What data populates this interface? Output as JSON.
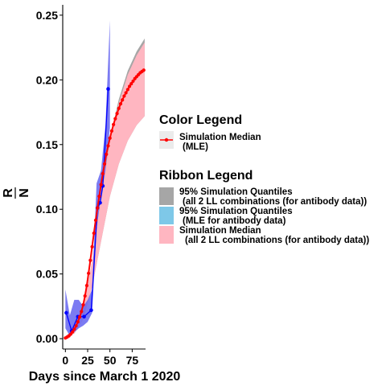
{
  "chart_data": {
    "type": "line",
    "xlabel": "Days since March 1 2020",
    "ylabel_numerator": "R",
    "ylabel_denominator": "N",
    "xlim": [
      -3,
      90
    ],
    "ylim": [
      -0.008,
      0.258
    ],
    "x_ticks": [
      0,
      25,
      50,
      75
    ],
    "y_ticks": [
      0.0,
      0.05,
      0.1,
      0.15,
      0.2,
      0.25
    ],
    "y_tick_labels": [
      "0.00",
      "0.05",
      "0.10",
      "0.15",
      "0.20",
      "0.25"
    ],
    "grid": false,
    "color_legend": {
      "title": "Color  Legend",
      "entries": [
        {
          "line1": "Simulation Median",
          "line2": "(MLE)",
          "color": "#ff0000"
        }
      ]
    },
    "ribbon_legend": {
      "title": "Ribbon  Legend",
      "entries": [
        {
          "line1": "95% Simulation Quantiles",
          "line2": "(all 2 LL combinations (for antibody data))",
          "color": "#a6a6a6"
        },
        {
          "line1": "95% Simulation Quantiles",
          "line2": "(MLE for antibody data)",
          "color": "#7ec8e8"
        },
        {
          "line1": "Simulation Median",
          "line2": "(all 2 LL combinations (for antibody data))",
          "color": "#ffb6c1"
        }
      ]
    },
    "series": [
      {
        "kind": "ribbon_gray",
        "color": "#a6a6a6",
        "x": [
          0,
          10,
          20,
          30,
          40,
          50,
          60,
          70,
          80,
          89
        ],
        "lower": [
          0.0,
          0.004,
          0.015,
          0.04,
          0.075,
          0.11,
          0.135,
          0.153,
          0.165,
          0.172
        ],
        "upper": [
          0.002,
          0.007,
          0.022,
          0.06,
          0.112,
          0.155,
          0.185,
          0.207,
          0.222,
          0.232
        ]
      },
      {
        "kind": "ribbon_pink",
        "color": "#ffb6c1",
        "x": [
          0,
          10,
          20,
          30,
          40,
          50,
          60,
          70,
          80,
          89
        ],
        "lower": [
          0.0,
          0.004,
          0.015,
          0.04,
          0.075,
          0.11,
          0.135,
          0.153,
          0.165,
          0.172
        ],
        "upper": [
          0.002,
          0.007,
          0.022,
          0.06,
          0.11,
          0.153,
          0.182,
          0.204,
          0.219,
          0.229
        ]
      },
      {
        "kind": "data_ribbon",
        "color": "#6464f0",
        "x": [
          0,
          5,
          10,
          15,
          20,
          25,
          30,
          35,
          40,
          45,
          50
        ],
        "lower": [
          0.008,
          0.002,
          0.005,
          0.008,
          0.01,
          0.013,
          0.02,
          0.085,
          0.11,
          0.13,
          0.163
        ],
        "upper": [
          0.038,
          0.018,
          0.03,
          0.03,
          0.025,
          0.03,
          0.038,
          0.12,
          0.13,
          0.165,
          0.246
        ]
      },
      {
        "kind": "data_line",
        "color": "#0000ff",
        "x": [
          1,
          7,
          14,
          21,
          29,
          36,
          39,
          42,
          48
        ],
        "y": [
          0.02,
          0.006,
          0.017,
          0.017,
          0.022,
          0.101,
          0.105,
          0.118,
          0.193
        ]
      },
      {
        "kind": "median",
        "name": "Simulation Median (MLE)",
        "color": "#ff0000",
        "x": [
          0,
          2,
          4,
          6,
          8,
          10,
          12,
          14,
          16,
          18,
          20,
          22,
          24,
          26,
          28,
          30,
          32,
          34,
          36,
          38,
          40,
          42,
          44,
          46,
          48,
          50,
          52,
          54,
          56,
          58,
          60,
          62,
          64,
          66,
          68,
          70,
          72,
          74,
          76,
          78,
          80,
          82,
          84,
          86,
          88
        ],
        "y": [
          0.0005,
          0.0012,
          0.0022,
          0.0035,
          0.0052,
          0.0073,
          0.0099,
          0.013,
          0.0167,
          0.021,
          0.0262,
          0.033,
          0.041,
          0.0505,
          0.0605,
          0.071,
          0.0815,
          0.0915,
          0.101,
          0.11,
          0.119,
          0.1275,
          0.135,
          0.1425,
          0.149,
          0.155,
          0.1605,
          0.1655,
          0.17,
          0.174,
          0.178,
          0.1815,
          0.1845,
          0.1875,
          0.19,
          0.1925,
          0.195,
          0.197,
          0.199,
          0.201,
          0.2025,
          0.204,
          0.2055,
          0.2065,
          0.2075
        ]
      }
    ]
  }
}
